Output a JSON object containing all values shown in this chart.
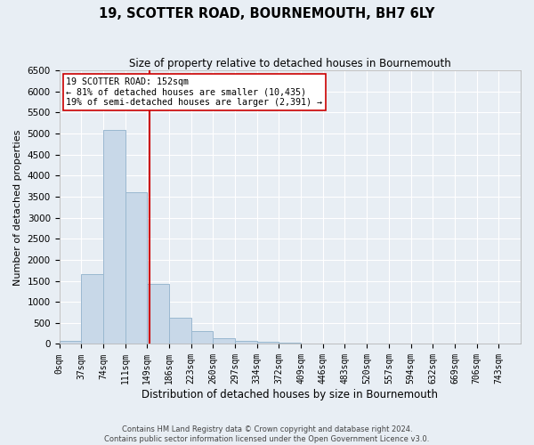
{
  "title": "19, SCOTTER ROAD, BOURNEMOUTH, BH7 6LY",
  "subtitle": "Size of property relative to detached houses in Bournemouth",
  "xlabel": "Distribution of detached houses by size in Bournemouth",
  "ylabel": "Number of detached properties",
  "bar_color": "#c8d8e8",
  "bar_edge_color": "#9ab8d0",
  "bin_labels": [
    "0sqm",
    "37sqm",
    "74sqm",
    "111sqm",
    "149sqm",
    "186sqm",
    "223sqm",
    "260sqm",
    "297sqm",
    "334sqm",
    "372sqm",
    "409sqm",
    "446sqm",
    "483sqm",
    "520sqm",
    "557sqm",
    "594sqm",
    "632sqm",
    "669sqm",
    "706sqm",
    "743sqm"
  ],
  "bar_heights": [
    75,
    1650,
    5080,
    3600,
    1420,
    620,
    300,
    135,
    75,
    45,
    30,
    20,
    15,
    10,
    5,
    3,
    2,
    1,
    1,
    0,
    0
  ],
  "property_line_x": 152,
  "bin_width": 37,
  "ylim": [
    0,
    6500
  ],
  "yticks": [
    0,
    500,
    1000,
    1500,
    2000,
    2500,
    3000,
    3500,
    4000,
    4500,
    5000,
    5500,
    6000,
    6500
  ],
  "annotation_title": "19 SCOTTER ROAD: 152sqm",
  "annotation_line1": "← 81% of detached houses are smaller (10,435)",
  "annotation_line2": "19% of semi-detached houses are larger (2,391) →",
  "vline_color": "#cc0000",
  "annotation_box_color": "#ffffff",
  "annotation_box_edge": "#cc0000",
  "background_color": "#e8eef4",
  "grid_color": "#ffffff",
  "footer1": "Contains HM Land Registry data © Crown copyright and database right 2024.",
  "footer2": "Contains public sector information licensed under the Open Government Licence v3.0."
}
